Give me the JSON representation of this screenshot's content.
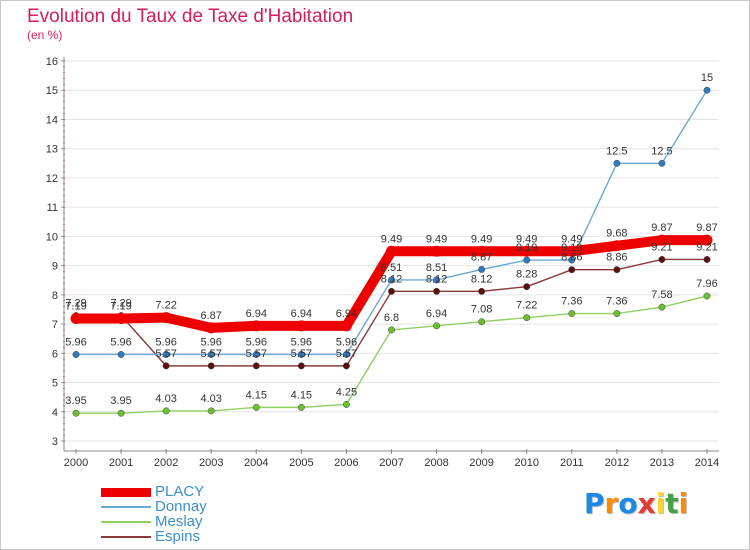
{
  "title": "Evolution du Taux de Taxe d'Habitation",
  "subtitle": "(en %)",
  "brand": {
    "letters": [
      "P",
      "r",
      "o",
      "x",
      "i",
      "t",
      "i"
    ],
    "colors": [
      "#1e88e5",
      "#fb8c00",
      "#1e88e5",
      "#e53935",
      "#fdd835",
      "#43a047",
      "#fb8c00"
    ]
  },
  "chart_data": {
    "type": "line",
    "x": [
      "2000",
      "2001",
      "2002",
      "2003",
      "2004",
      "2005",
      "2006",
      "2007",
      "2008",
      "2009",
      "2010",
      "2011",
      "2012",
      "2013",
      "2014"
    ],
    "ylim": [
      3,
      16
    ],
    "yticks": [
      "3",
      "4",
      "5",
      "6",
      "7",
      "8",
      "9",
      "10",
      "11",
      "12",
      "13",
      "14",
      "15",
      "16"
    ],
    "legend_position": "bottom-left",
    "series": [
      {
        "name": "PLACY",
        "color": "#ee0000",
        "marker": "#ee0000",
        "thick": true,
        "values": [
          7.19,
          7.19,
          7.22,
          6.87,
          6.94,
          6.94,
          6.94,
          9.49,
          9.49,
          9.49,
          9.49,
          9.49,
          9.68,
          9.87,
          9.87
        ],
        "labels": [
          "7.19",
          "7.19",
          "7.22",
          "6.87",
          "6.94",
          "6.94",
          "6.94",
          "9.49",
          "9.49",
          "9.49",
          "9.49",
          "9.49",
          "9.68",
          "9.87",
          "9.87"
        ]
      },
      {
        "name": "Donnay",
        "color": "#6aa8d8",
        "marker": "#2f7bbf",
        "values": [
          5.96,
          5.96,
          5.96,
          5.96,
          5.96,
          5.96,
          5.96,
          8.51,
          8.51,
          8.87,
          9.19,
          9.19,
          12.5,
          12.5,
          15
        ],
        "labels": [
          "5.96",
          "5.96",
          "5.96",
          "5.96",
          "5.96",
          "5.96",
          "5.96",
          "8.51",
          "8.51",
          "8.87",
          "9.19",
          "9.19",
          "12.5",
          "12.5",
          "15"
        ]
      },
      {
        "name": "Meslay",
        "color": "#8fd060",
        "marker": "#6cc030",
        "values": [
          3.95,
          3.95,
          4.03,
          4.03,
          4.15,
          4.15,
          4.25,
          6.8,
          6.94,
          7.08,
          7.22,
          7.36,
          7.36,
          7.58,
          7.96
        ],
        "labels": [
          "3.95",
          "3.95",
          "4.03",
          "4.03",
          "4.15",
          "4.15",
          "4.25",
          "6.8",
          "6.94",
          "7.08",
          "7.22",
          "7.36",
          "7.36",
          "7.58",
          "7.96"
        ]
      },
      {
        "name": "Espins",
        "color": "#8b3a3a",
        "marker": "#5a1010",
        "values": [
          7.29,
          7.29,
          5.57,
          5.57,
          5.57,
          5.57,
          5.57,
          8.12,
          8.12,
          8.12,
          8.28,
          8.86,
          8.86,
          9.21,
          9.21
        ],
        "labels": [
          "7.29",
          "7.29",
          "5.57",
          "5.57",
          "5.57",
          "5.57",
          "5.57",
          "8.12",
          "8.12",
          "8.12",
          "8.28",
          "8.86",
          "8.86",
          "9.21",
          "9.21"
        ]
      }
    ]
  }
}
